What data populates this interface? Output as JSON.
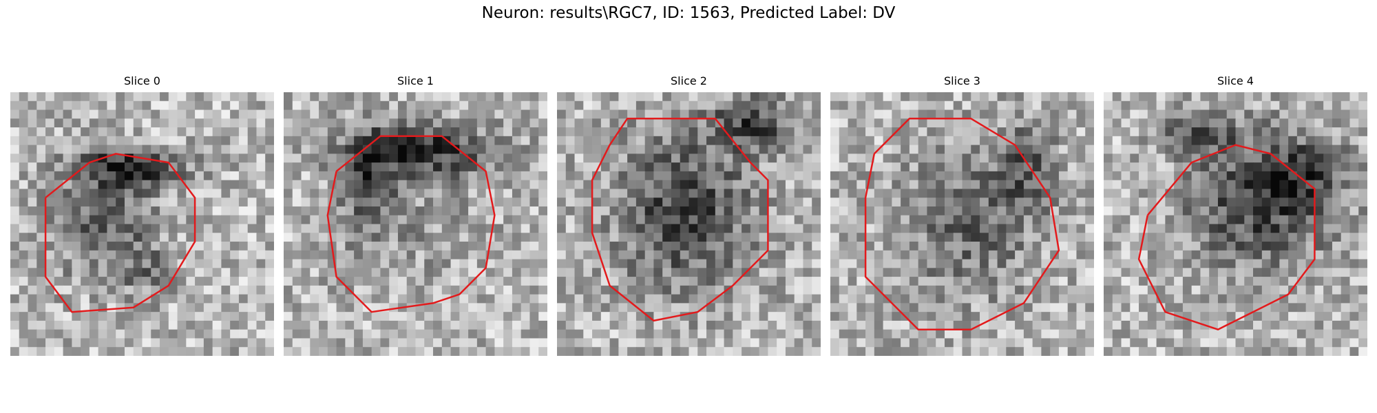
{
  "figure": {
    "title": "Neuron: results\\RGC7, ID: 1563, Predicted Label: DV"
  },
  "colors": {
    "contour": "#e31a1c",
    "background": "#ffffff",
    "colormap": "grayscale"
  },
  "panels": [
    {
      "title": "Slice 0"
    },
    {
      "title": "Slice 1"
    },
    {
      "title": "Slice 2"
    },
    {
      "title": "Slice 3"
    },
    {
      "title": "Slice 4"
    }
  ]
}
